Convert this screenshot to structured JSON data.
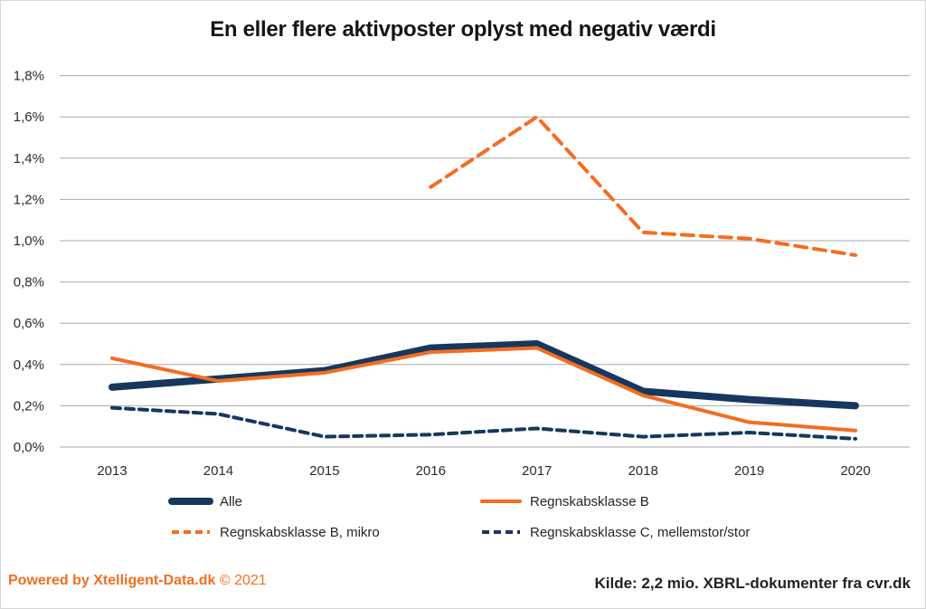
{
  "title": "En eller flere aktivposter oplyst med negativ værdi",
  "colors": {
    "navy": "#17375e",
    "orange": "#f36d21",
    "grid": "#a9a9a9",
    "text_dark": "#222222"
  },
  "chart_data": {
    "type": "line",
    "x": [
      "2013",
      "2014",
      "2015",
      "2016",
      "2017",
      "2018",
      "2019",
      "2020"
    ],
    "series": [
      {
        "name": "Alle",
        "color": "#17375e",
        "style": "solid-thick",
        "values": [
          0.29,
          0.33,
          0.37,
          0.48,
          0.5,
          0.27,
          0.23,
          0.2
        ]
      },
      {
        "name": "Regnskabsklasse B",
        "color": "#f36d21",
        "style": "solid",
        "values": [
          0.43,
          0.32,
          0.36,
          0.46,
          0.48,
          0.25,
          0.12,
          0.08
        ]
      },
      {
        "name": "Regnskabsklasse B, mikro",
        "color": "#f36d21",
        "style": "dashed",
        "values": [
          null,
          null,
          null,
          1.26,
          1.6,
          1.04,
          1.01,
          0.93
        ]
      },
      {
        "name": "Regnskabsklasse C, mellemstor/stor",
        "color": "#17375e",
        "style": "dashed",
        "values": [
          0.19,
          0.16,
          0.05,
          0.06,
          0.09,
          0.05,
          0.07,
          0.04
        ]
      }
    ],
    "ylim": [
      0,
      1.8
    ],
    "ytick_step": 0.2,
    "ytick_labels": [
      "0,0%",
      "0,2%",
      "0,4%",
      "0,6%",
      "0,8%",
      "1,0%",
      "1,2%",
      "1,4%",
      "1,6%",
      "1,8%"
    ],
    "grid": true,
    "legend_position": "bottom"
  },
  "footer": {
    "powered_by": "Powered by Xtelligent-Data.dk",
    "copyright": "© 2021",
    "source": "Kilde: 2,2 mio. XBRL-dokumenter fra cvr.dk"
  }
}
